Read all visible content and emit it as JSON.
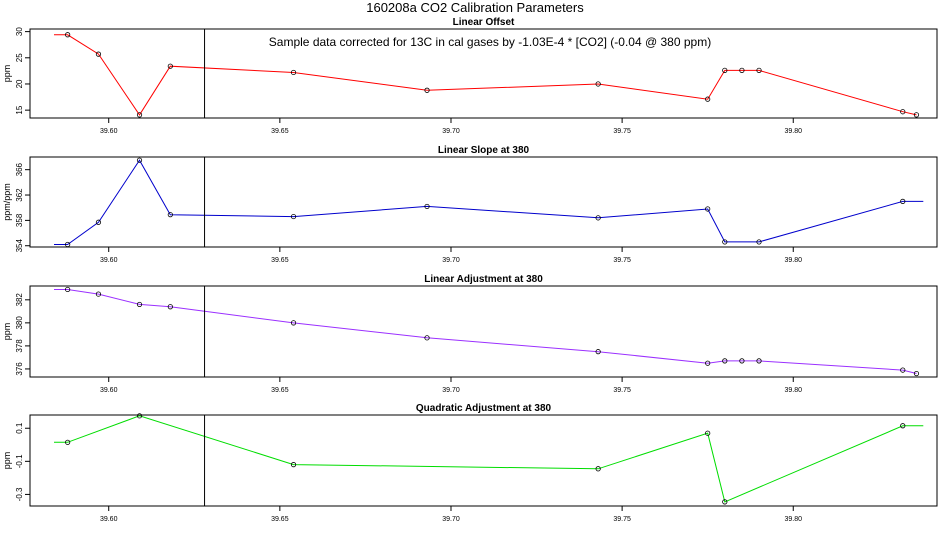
{
  "figure": {
    "title": "160208a   CO2 Calibration Parameters",
    "annotation": "Sample data corrected for 13C in cal gases by -1.03E-4 * [CO2] (-0.04 @ 380 ppm)",
    "vline_x": 39.628
  },
  "chart_data": [
    {
      "type": "line",
      "title": "Linear Offset",
      "ylabel": "ppm",
      "xlim": [
        39.577,
        39.842
      ],
      "ylim": [
        13.5,
        30.5
      ],
      "xticks": [
        39.6,
        39.65,
        39.7,
        39.75,
        39.8
      ],
      "xtick_labels": [
        "39.60",
        "39.65",
        "39.70",
        "39.75",
        "39.80"
      ],
      "yticks": [
        15,
        20,
        25,
        30
      ],
      "ytick_labels": [
        "15",
        "20",
        "25",
        "30"
      ],
      "color": "#ff0000",
      "line_start": [
        39.584,
        29.4
      ],
      "line_end": [
        39.836,
        14.1
      ],
      "points": [
        [
          39.588,
          29.4
        ],
        [
          39.597,
          25.7
        ],
        [
          39.609,
          14.1
        ],
        [
          39.618,
          23.4
        ],
        [
          39.654,
          22.2
        ],
        [
          39.693,
          18.8
        ],
        [
          39.743,
          20.0
        ],
        [
          39.775,
          17.1
        ],
        [
          39.78,
          22.6
        ],
        [
          39.785,
          22.6
        ],
        [
          39.79,
          22.6
        ],
        [
          39.832,
          14.7
        ],
        [
          39.836,
          14.1
        ]
      ]
    },
    {
      "type": "line",
      "title": "Linear Slope at 380",
      "ylabel": "ppm/ppm",
      "xlim": [
        39.577,
        39.842
      ],
      "ylim": [
        353.8,
        368
      ],
      "xticks": [
        39.6,
        39.65,
        39.7,
        39.75,
        39.8
      ],
      "xtick_labels": [
        "39.60",
        "39.65",
        "39.70",
        "39.75",
        "39.80"
      ],
      "yticks": [
        354,
        358,
        362,
        366
      ],
      "ytick_labels": [
        "354",
        "358",
        "362",
        "366"
      ],
      "color": "#0000cc",
      "line_start": [
        39.584,
        354.2
      ],
      "line_end": [
        39.838,
        361.0
      ],
      "points": [
        [
          39.588,
          354.2
        ],
        [
          39.597,
          357.7
        ],
        [
          39.609,
          367.5
        ],
        [
          39.618,
          358.9
        ],
        [
          39.654,
          358.6
        ],
        [
          39.693,
          360.2
        ],
        [
          39.743,
          358.4
        ],
        [
          39.775,
          359.8
        ],
        [
          39.78,
          354.6
        ],
        [
          39.79,
          354.6
        ],
        [
          39.832,
          361.0
        ]
      ]
    },
    {
      "type": "line",
      "title": "Linear Adjustment at 380",
      "ylabel": "ppm",
      "xlim": [
        39.577,
        39.842
      ],
      "ylim": [
        375.3,
        383.2
      ],
      "xticks": [
        39.6,
        39.65,
        39.7,
        39.75,
        39.8
      ],
      "xtick_labels": [
        "39.60",
        "39.65",
        "39.70",
        "39.75",
        "39.80"
      ],
      "yticks": [
        376,
        378,
        380,
        382
      ],
      "ytick_labels": [
        "376",
        "378",
        "380",
        "382"
      ],
      "color": "#9b30ff",
      "line_start": [
        39.584,
        382.9
      ],
      "line_end": [
        39.836,
        375.6
      ],
      "points": [
        [
          39.588,
          382.9
        ],
        [
          39.597,
          382.5
        ],
        [
          39.609,
          381.6
        ],
        [
          39.618,
          381.4
        ],
        [
          39.654,
          380.0
        ],
        [
          39.693,
          378.7
        ],
        [
          39.743,
          377.5
        ],
        [
          39.775,
          376.5
        ],
        [
          39.78,
          376.7
        ],
        [
          39.785,
          376.7
        ],
        [
          39.79,
          376.7
        ],
        [
          39.832,
          375.9
        ],
        [
          39.836,
          375.6
        ]
      ]
    },
    {
      "type": "line",
      "title": "Quadratic Adjustment at 380",
      "ylabel": "ppm",
      "xlim": [
        39.577,
        39.842
      ],
      "ylim": [
        -0.37,
        0.18
      ],
      "xticks": [
        39.6,
        39.65,
        39.7,
        39.75,
        39.8
      ],
      "xtick_labels": [
        "39.60",
        "39.65",
        "39.70",
        "39.75",
        "39.80"
      ],
      "yticks": [
        -0.3,
        -0.1,
        0.1
      ],
      "ytick_labels": [
        "-0.3",
        "-0.1",
        "0.1"
      ],
      "color": "#00dd00",
      "line_start": [
        39.584,
        0.015
      ],
      "line_end": [
        39.838,
        0.115
      ],
      "points": [
        [
          39.588,
          0.015
        ],
        [
          39.609,
          0.175
        ],
        [
          39.654,
          -0.12
        ],
        [
          39.743,
          -0.145
        ],
        [
          39.775,
          0.07
        ],
        [
          39.78,
          -0.345
        ],
        [
          39.832,
          0.115
        ]
      ]
    }
  ]
}
